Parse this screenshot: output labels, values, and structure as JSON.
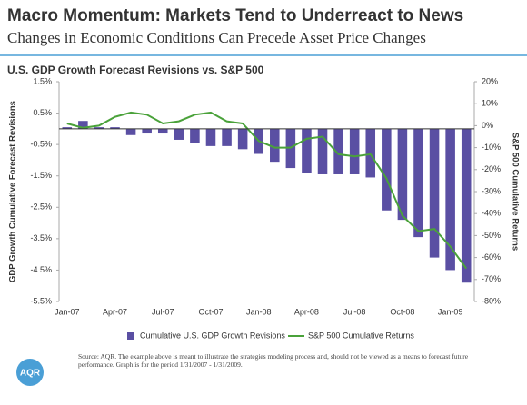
{
  "header": {
    "title": "Macro Momentum:  Markets Tend to Underreact to News",
    "subtitle": "Changes in Economic Conditions Can Precede Asset Price Changes"
  },
  "chart_data": {
    "type": "bar-line",
    "title": "U.S. GDP Growth Forecast Revisions vs. S&P 500",
    "y_label": "GDP Growth Cumulative Forecast Revisions",
    "y2_label": "S&P 500 Cumulative Returns",
    "categories": [
      "Jan-07",
      null,
      null,
      "Apr-07",
      null,
      null,
      "Jul-07",
      null,
      null,
      "Oct-07",
      null,
      null,
      "Jan-08",
      null,
      null,
      "Apr-08",
      null,
      null,
      "Jul-08",
      null,
      null,
      "Oct-08",
      null,
      null,
      "Jan-09",
      null
    ],
    "series": [
      {
        "name": "Cumulative U.S. GDP Growth Revisions",
        "type": "bar",
        "color": "#5a4fa3",
        "values": [
          0.05,
          0.25,
          0.05,
          0.05,
          -0.2,
          -0.15,
          -0.15,
          -0.35,
          -0.45,
          -0.55,
          -0.55,
          -0.65,
          -0.8,
          -1.05,
          -1.25,
          -1.4,
          -1.45,
          -1.45,
          -1.45,
          -1.55,
          -2.6,
          -2.9,
          -3.45,
          -4.1,
          -4.5,
          -4.9
        ]
      },
      {
        "name": "S&P 500 Cumulative Returns",
        "type": "line",
        "axis": "y2",
        "color": "#4aa23a",
        "values": [
          1,
          -1,
          0,
          4,
          6,
          5,
          1,
          2,
          5,
          6,
          2,
          1,
          -7,
          -10,
          -10,
          -6,
          -5,
          -13,
          -14,
          -13,
          -24,
          -41,
          -48,
          -47,
          -55,
          -65
        ]
      }
    ],
    "ylim": [
      -5.5,
      1.5
    ],
    "yticks": [
      {
        "value": 1.5,
        "label": "1.5%"
      },
      {
        "value": 0.5,
        "label": "0.5%"
      },
      {
        "value": -0.5,
        "label": "-0.5%"
      },
      {
        "value": -1.5,
        "label": "-1.5%"
      },
      {
        "value": -2.5,
        "label": "-2.5%"
      },
      {
        "value": -3.5,
        "label": "-3.5%"
      },
      {
        "value": -4.5,
        "label": "-4.5%"
      },
      {
        "value": -5.5,
        "label": "-5.5%"
      }
    ],
    "y2lim": [
      -80,
      20
    ],
    "y2ticks": [
      {
        "value": 20,
        "label": "20%"
      },
      {
        "value": 10,
        "label": "10%"
      },
      {
        "value": 0,
        "label": "0%"
      },
      {
        "value": -10,
        "label": "-10%"
      },
      {
        "value": -20,
        "label": "-20%"
      },
      {
        "value": -30,
        "label": "-30%"
      },
      {
        "value": -40,
        "label": "-40%"
      },
      {
        "value": -50,
        "label": "-50%"
      },
      {
        "value": -60,
        "label": "-60%"
      },
      {
        "value": -70,
        "label": "-70%"
      },
      {
        "value": -80,
        "label": "-80%"
      }
    ],
    "grid": false,
    "legend": "bottom"
  },
  "footer": {
    "source": "Source: AQR. The example above is meant to illustrate the strategies modeling process and, should not be viewed as a means to forecast future  performance. Graph is for the period 1/31/2007 - 1/31/2009.",
    "logo": "AQR"
  }
}
